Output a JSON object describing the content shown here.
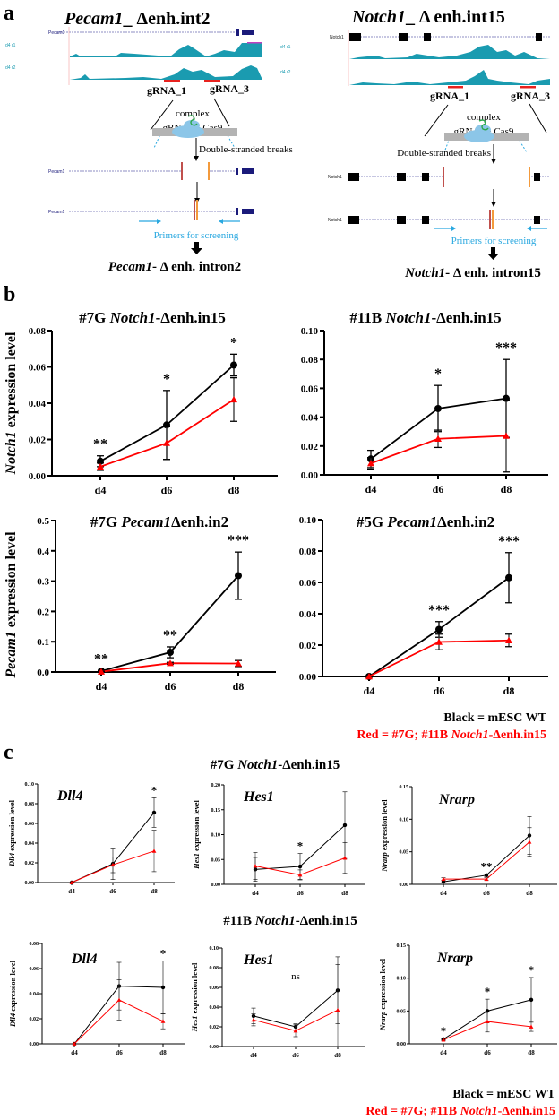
{
  "panel_a": {
    "label": "a",
    "left": {
      "title_gene": "Pecam1",
      "title_rest": "_ Δenh.int2",
      "track_gene": "Pecam1",
      "track_r1": "d4 r1",
      "track_r2": "d4 r2",
      "grna1": "gRNA_1",
      "grna3": "gRNA_3",
      "complex": "complex",
      "complex2": "gRNAs + Cas9",
      "dsb": "Double-stranded breaks",
      "primers": "Primers for screening",
      "result_gene": "Pecam1",
      "result_rest": "- Δ enh. intron2"
    },
    "right": {
      "title_gene": "Notch1",
      "title_rest": "_ Δ enh.int15",
      "track_gene": "Notch1",
      "track_r1": "d4 r1",
      "track_r2": "d4 r2",
      "grna1": "gRNA_1",
      "grna3": "gRNA_3",
      "complex": "complex",
      "complex2": "gRNAs + Cas9",
      "dsb": "Double-stranded breaks",
      "primers": "Primers for screening",
      "result_gene": "Notch1",
      "result_rest": "- Δ enh. intron15"
    },
    "colors": {
      "coverage": "#1a9bb0",
      "grna": "#e8231f",
      "cut_red": "#c0504d",
      "cut_orange": "#f39a3c",
      "primer": "#29a8e0",
      "gene": "#1a1a7a"
    }
  },
  "panel_b": {
    "label": "b",
    "ylabel_top_gene": "Notch1",
    "ylabel_bottom_gene": "Pecam1",
    "ylabel_rest": " expression level",
    "legend": {
      "black": "Black = mESC WT",
      "red_prefix": "Red = #7G; #11B ",
      "red_gene": "Notch1",
      "red_suffix": "-Δenh.in15"
    }
  },
  "panel_c": {
    "label": "c",
    "row1_title_prefix": "#7G ",
    "row1_title_gene": "Notch1",
    "row1_title_suffix": "-Δenh.in15",
    "row2_title_prefix": "#11B ",
    "row2_title_gene": "Notch1",
    "row2_title_suffix": "-Δenh.in15",
    "legend": {
      "black": "Black = mESC WT",
      "red_prefix": "Red = #7G; #11B ",
      "red_gene": "Notch1",
      "red_suffix": "-Δenh.in15"
    }
  },
  "colors": {
    "wt": "#000000",
    "mutant": "#ff0000"
  },
  "chart_data": [
    {
      "type": "line",
      "panel": "b",
      "title_prefix": "#7G ",
      "title_gene": "Notch1",
      "title_suffix": "-Δenh.in15",
      "ylabel_gene": "Notch1",
      "categories": [
        "d4",
        "d6",
        "d8"
      ],
      "ylim": [
        0,
        0.08
      ],
      "yticks": [
        "0.00",
        "0.02",
        "0.04",
        "0.06",
        "0.08"
      ],
      "series": [
        {
          "name": "mESC WT",
          "values": [
            0.008,
            0.028,
            0.061
          ],
          "errors": [
            0.003,
            0.019,
            0.006
          ]
        },
        {
          "name": "#7G Notch1-Δenh.in15",
          "values": [
            0.005,
            0.018,
            0.042
          ],
          "errors": [
            0.002,
            0.009,
            0.012
          ]
        }
      ],
      "significance": [
        "**",
        "*",
        "*"
      ]
    },
    {
      "type": "line",
      "panel": "b",
      "title_prefix": "#11B ",
      "title_gene": "Notch1",
      "title_suffix": "-Δenh.in15",
      "categories": [
        "d4",
        "d6",
        "d8"
      ],
      "ylim": [
        0,
        0.1
      ],
      "yticks": [
        "0.00",
        "0.02",
        "0.04",
        "0.06",
        "0.08",
        "0.10"
      ],
      "series": [
        {
          "name": "mESC WT",
          "values": [
            0.011,
            0.046,
            0.053
          ],
          "errors": [
            0.006,
            0.016,
            0.027
          ]
        },
        {
          "name": "#11B Notch1-Δenh.in15",
          "values": [
            0.008,
            0.025,
            0.027
          ],
          "errors": [
            0.004,
            0.006,
            0.025
          ]
        }
      ],
      "significance": [
        "",
        "*",
        "***"
      ]
    },
    {
      "type": "line",
      "panel": "b",
      "title_prefix": "#7G ",
      "title_gene": "Pecam1",
      "title_suffix": "Δenh.in2",
      "ylabel_gene": "Pecam1",
      "categories": [
        "d4",
        "d6",
        "d8"
      ],
      "ylim": [
        0,
        0.5
      ],
      "yticks": [
        "0.0",
        "0.1",
        "0.2",
        "0.3",
        "0.4",
        "0.5"
      ],
      "series": [
        {
          "name": "mESC WT",
          "values": [
            0.003,
            0.065,
            0.318
          ],
          "errors": [
            0.002,
            0.018,
            0.078
          ]
        },
        {
          "name": "#7G Pecam1Δenh.in2",
          "values": [
            0.001,
            0.029,
            0.028
          ],
          "errors": [
            0.001,
            0.003,
            0.01
          ]
        }
      ],
      "significance": [
        "**",
        "**",
        "***"
      ]
    },
    {
      "type": "line",
      "panel": "b",
      "title_prefix": "#5G ",
      "title_gene": "Pecam1",
      "title_suffix": "Δenh.in2",
      "categories": [
        "d4",
        "d6",
        "d8"
      ],
      "ylim": [
        0,
        0.1
      ],
      "yticks": [
        "0.00",
        "0.02",
        "0.04",
        "0.06",
        "0.08",
        "0.10"
      ],
      "series": [
        {
          "name": "mESC WT",
          "values": [
            0.0,
            0.03,
            0.063
          ],
          "errors": [
            0.0,
            0.005,
            0.016
          ]
        },
        {
          "name": "#5G Pecam1Δenh.in2",
          "values": [
            0.0,
            0.022,
            0.023
          ],
          "errors": [
            0.0,
            0.005,
            0.004
          ]
        }
      ],
      "significance": [
        "",
        "***",
        "***"
      ]
    },
    {
      "type": "line",
      "panel": "c",
      "title_gene": "Dll4",
      "ylabel_gene": "Dll4",
      "categories": [
        "d4",
        "d6",
        "d8"
      ],
      "ylim": [
        0,
        0.1
      ],
      "yticks": [
        "0.00",
        "0.02",
        "0.04",
        "0.06",
        "0.08",
        "0.10"
      ],
      "series": [
        {
          "name": "mESC WT",
          "values": [
            0.0,
            0.019,
            0.071
          ],
          "errors": [
            0.0,
            0.016,
            0.015
          ]
        },
        {
          "name": "#7G Notch1-Δenh.in15",
          "values": [
            0.0,
            0.018,
            0.032
          ],
          "errors": [
            0.0,
            0.008,
            0.021
          ]
        }
      ],
      "significance": [
        "",
        "",
        "*"
      ]
    },
    {
      "type": "line",
      "panel": "c",
      "title_gene": "Hes1",
      "ylabel_gene": "Hes1",
      "categories": [
        "d4",
        "d6",
        "d8"
      ],
      "ylim": [
        0,
        0.2
      ],
      "yticks": [
        "0.00",
        "0.05",
        "0.10",
        "0.15",
        "0.20"
      ],
      "series": [
        {
          "name": "mESC WT",
          "values": [
            0.03,
            0.036,
            0.119
          ],
          "errors": [
            0.024,
            0.026,
            0.067
          ]
        },
        {
          "name": "#7G Notch1-Δenh.in15",
          "values": [
            0.037,
            0.019,
            0.053
          ],
          "errors": [
            0.027,
            0.01,
            0.031
          ]
        }
      ],
      "significance": [
        "",
        "*",
        ""
      ]
    },
    {
      "type": "line",
      "panel": "c",
      "title_gene": "Nrarp",
      "ylabel_gene": "Nrarp",
      "categories": [
        "d4",
        "d6",
        "d8"
      ],
      "ylim": [
        0,
        0.15
      ],
      "yticks": [
        "0.00",
        "0.05",
        "0.10",
        "0.15"
      ],
      "series": [
        {
          "name": "mESC WT",
          "values": [
            0.004,
            0.014,
            0.075
          ],
          "errors": [
            0.002,
            0.002,
            0.029
          ]
        },
        {
          "name": "#7G Notch1-Δenh.in15",
          "values": [
            0.008,
            0.008,
            0.065
          ],
          "errors": [
            0.002,
            0.002,
            0.022
          ]
        }
      ],
      "significance": [
        "",
        "**",
        ""
      ]
    },
    {
      "type": "line",
      "panel": "c",
      "title_gene": "Dll4",
      "ylabel_gene": "Dll4",
      "categories": [
        "d4",
        "d6",
        "d8"
      ],
      "ylim": [
        0,
        0.08
      ],
      "yticks": [
        "0.00",
        "0.02",
        "0.04",
        "0.06",
        "0.08"
      ],
      "series": [
        {
          "name": "mESC WT",
          "values": [
            0.0,
            0.046,
            0.045
          ],
          "errors": [
            0.0,
            0.019,
            0.021
          ]
        },
        {
          "name": "#11B Notch1-Δenh.in15",
          "values": [
            0.0,
            0.035,
            0.018
          ],
          "errors": [
            0.0,
            0.016,
            0.006
          ]
        }
      ],
      "significance": [
        "",
        "",
        "*"
      ]
    },
    {
      "type": "line",
      "panel": "c",
      "title_gene": "Hes1",
      "ylabel_gene": "Hes1",
      "categories": [
        "d4",
        "d6",
        "d8"
      ],
      "ylim": [
        0,
        0.1
      ],
      "yticks": [
        "0.00",
        "0.02",
        "0.04",
        "0.06",
        "0.08",
        "0.10"
      ],
      "series": [
        {
          "name": "mESC WT",
          "values": [
            0.031,
            0.02,
            0.057
          ],
          "errors": [
            0.008,
            0.003,
            0.034
          ]
        },
        {
          "name": "#11B Notch1-Δenh.in15",
          "values": [
            0.027,
            0.016,
            0.037
          ],
          "errors": [
            0.006,
            0.006,
            0.046
          ]
        }
      ],
      "significance": [
        "",
        "ns",
        ""
      ]
    },
    {
      "type": "line",
      "panel": "c",
      "title_gene": "Nrarp",
      "ylabel_gene": "Nrarp",
      "categories": [
        "d4",
        "d6",
        "d8"
      ],
      "ylim": [
        0,
        0.15
      ],
      "yticks": [
        "0.00",
        "0.05",
        "0.10",
        "0.15"
      ],
      "series": [
        {
          "name": "mESC WT",
          "values": [
            0.007,
            0.05,
            0.067
          ],
          "errors": [
            0.001,
            0.018,
            0.034
          ]
        },
        {
          "name": "#11B Notch1-Δenh.in15",
          "values": [
            0.006,
            0.034,
            0.026
          ],
          "errors": [
            0.001,
            0.016,
            0.007
          ]
        }
      ],
      "significance": [
        "*",
        "*",
        "*"
      ]
    }
  ]
}
